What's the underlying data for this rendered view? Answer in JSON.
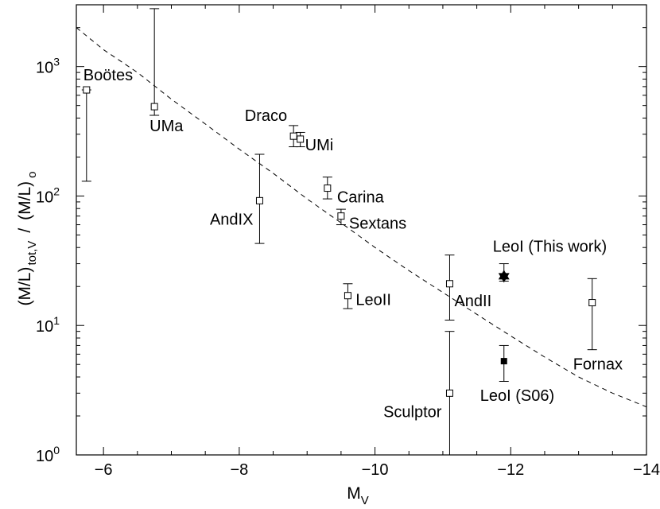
{
  "chart_data": {
    "type": "scatter",
    "xlabel_main": "M",
    "xlabel_sub": "V",
    "ylabel_parts": [
      "(M/L)",
      "tot,V",
      "/",
      "(M/L)",
      "o"
    ],
    "xlim": [
      -5.6,
      -14
    ],
    "ylim": [
      1,
      3000
    ],
    "yscale": "log",
    "x_ticks": [
      -6,
      -8,
      -10,
      -12,
      -14
    ],
    "x_tick_labels": [
      "−6",
      "−8",
      "−10",
      "−12",
      "−14"
    ],
    "y_ticks": [
      1,
      10,
      100,
      1000
    ],
    "y_tick_labels": [
      {
        "base": "10",
        "exp": "0"
      },
      {
        "base": "10",
        "exp": "1"
      },
      {
        "base": "10",
        "exp": "2"
      },
      {
        "base": "10",
        "exp": "3"
      }
    ],
    "points": [
      {
        "name": "Boötes",
        "x": -5.75,
        "y": 660,
        "ylo": 130,
        "yhi": 660,
        "marker": "open-square",
        "label_anchor": "start"
      },
      {
        "name": "UMa",
        "x": -6.75,
        "y": 490,
        "ylo": 420,
        "yhi": 2800,
        "marker": "open-square",
        "label_anchor": "start"
      },
      {
        "name": "Draco",
        "x": -8.8,
        "y": 290,
        "ylo": 240,
        "yhi": 350,
        "marker": "open-square",
        "label_anchor": "end"
      },
      {
        "name": "UMi",
        "x": -8.9,
        "y": 275,
        "ylo": 240,
        "yhi": 310,
        "marker": "open-square",
        "label_anchor": "start"
      },
      {
        "name": "AndIX",
        "x": -8.3,
        "y": 92,
        "ylo": 43,
        "yhi": 210,
        "marker": "open-square",
        "label_anchor": "end"
      },
      {
        "name": "Carina",
        "x": -9.3,
        "y": 115,
        "ylo": 95,
        "yhi": 140,
        "marker": "open-square",
        "label_anchor": "start"
      },
      {
        "name": "Sextans",
        "x": -9.5,
        "y": 70,
        "ylo": 60,
        "yhi": 79,
        "marker": "open-square",
        "label_anchor": "start"
      },
      {
        "name": "LeoII",
        "x": -9.6,
        "y": 17,
        "ylo": 13.5,
        "yhi": 21,
        "marker": "open-square",
        "label_anchor": "start"
      },
      {
        "name": "AndII",
        "x": -11.1,
        "y": 21,
        "ylo": 11,
        "yhi": 35,
        "marker": "open-square",
        "label_anchor": "start"
      },
      {
        "name": "Sculptor",
        "x": -11.1,
        "y": 3,
        "ylo": 1,
        "yhi": 9,
        "marker": "open-square",
        "label_anchor": "end"
      },
      {
        "name": "LeoI (This work)",
        "x": -11.9,
        "y": 24,
        "ylo": 22,
        "yhi": 30,
        "marker": "star",
        "label_anchor": "start"
      },
      {
        "name": "LeoI (S06)",
        "x": -11.9,
        "y": 5.3,
        "ylo": 3.7,
        "yhi": 7,
        "marker": "filled-square",
        "label_anchor": "start"
      },
      {
        "name": "Fornax",
        "x": -13.2,
        "y": 15,
        "ylo": 6.5,
        "yhi": 23,
        "marker": "open-square",
        "label_anchor": "start"
      }
    ],
    "curve": {
      "style": "dashed",
      "x": [
        -5.6,
        -6.0,
        -6.5,
        -7.0,
        -7.5,
        -8.0,
        -8.5,
        -9.0,
        -9.5,
        -10.0,
        -10.5,
        -11.0,
        -11.5,
        -12.0,
        -12.5,
        -13.0,
        -13.5,
        -14.0
      ],
      "y": [
        2000,
        1350,
        900,
        560,
        360,
        230,
        150,
        95,
        62,
        40,
        26.5,
        18,
        12.2,
        8.3,
        5.7,
        4.0,
        3.0,
        2.35
      ]
    },
    "grid": false,
    "legend": "none"
  }
}
